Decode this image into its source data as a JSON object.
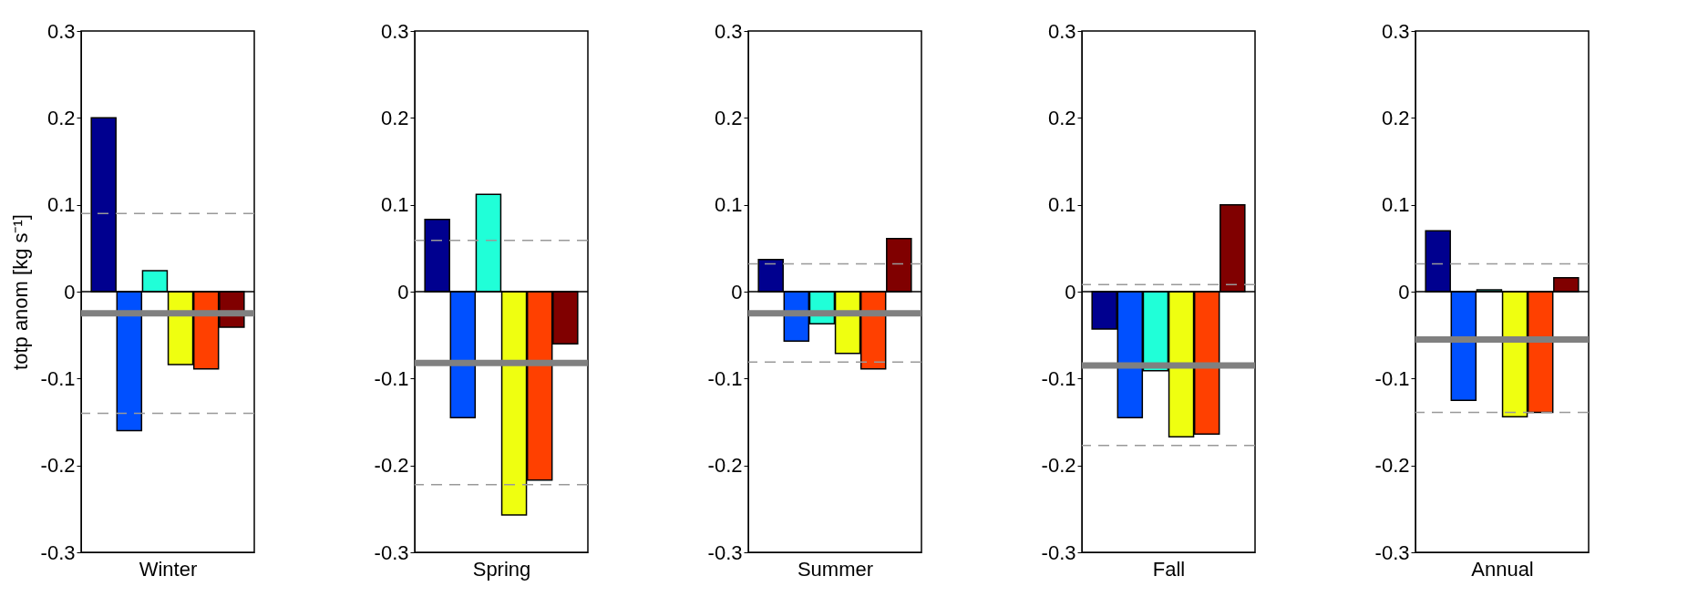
{
  "chart_data": [
    {
      "type": "bar",
      "xlabel": "Winter",
      "ylabel": "totp anom [kg s⁻¹]",
      "categories": [
        null,
        null,
        null,
        null,
        null,
        null
      ],
      "values": [
        0.2,
        -0.16,
        0.024,
        -0.084,
        -0.089,
        -0.041
      ],
      "colors": [
        "#00008f",
        "#0050ff",
        "#20ffd8",
        "#efff10",
        "#ff4000",
        "#800000"
      ],
      "ylim": [
        -0.3,
        0.3
      ],
      "yticks": [
        -0.3,
        -0.2,
        -0.1,
        0,
        0.1,
        0.2,
        0.3
      ],
      "ref_lines": [
        {
          "axis": "y",
          "value": -0.025,
          "color": "#808080",
          "line_style": "solid"
        },
        {
          "axis": "y",
          "value": 0.09,
          "color": "#999999",
          "line_style": "dashed"
        },
        {
          "axis": "y",
          "value": -0.14,
          "color": "#999999",
          "line_style": "dashed"
        }
      ]
    },
    {
      "type": "bar",
      "xlabel": "Spring",
      "categories": [
        null,
        null,
        null,
        null,
        null,
        null
      ],
      "values": [
        0.083,
        -0.145,
        0.112,
        -0.257,
        -0.217,
        -0.06
      ],
      "colors": [
        "#00008f",
        "#0050ff",
        "#20ffd8",
        "#efff10",
        "#ff4000",
        "#800000"
      ],
      "ylim": [
        -0.3,
        0.3
      ],
      "yticks": [
        -0.3,
        -0.2,
        -0.1,
        0,
        0.1,
        0.2,
        0.3
      ],
      "ref_lines": [
        {
          "axis": "y",
          "value": -0.082,
          "color": "#808080",
          "line_style": "solid"
        },
        {
          "axis": "y",
          "value": 0.059,
          "color": "#999999",
          "line_style": "dashed"
        },
        {
          "axis": "y",
          "value": -0.222,
          "color": "#999999",
          "line_style": "dashed"
        }
      ]
    },
    {
      "type": "bar",
      "xlabel": "Summer",
      "categories": [
        null,
        null,
        null,
        null,
        null,
        null
      ],
      "values": [
        0.037,
        -0.057,
        -0.037,
        -0.071,
        -0.089,
        0.061
      ],
      "colors": [
        "#00008f",
        "#0050ff",
        "#20ffd8",
        "#efff10",
        "#ff4000",
        "#800000"
      ],
      "ylim": [
        -0.3,
        0.3
      ],
      "yticks": [
        -0.3,
        -0.2,
        -0.1,
        0,
        0.1,
        0.2,
        0.3
      ],
      "ref_lines": [
        {
          "axis": "y",
          "value": -0.025,
          "color": "#808080",
          "line_style": "solid"
        },
        {
          "axis": "y",
          "value": 0.032,
          "color": "#999999",
          "line_style": "dashed"
        },
        {
          "axis": "y",
          "value": -0.081,
          "color": "#999999",
          "line_style": "dashed"
        }
      ]
    },
    {
      "type": "bar",
      "xlabel": "Fall",
      "categories": [
        null,
        null,
        null,
        null,
        null,
        null
      ],
      "values": [
        -0.043,
        -0.145,
        -0.091,
        -0.167,
        -0.164,
        0.1
      ],
      "colors": [
        "#00008f",
        "#0050ff",
        "#20ffd8",
        "#efff10",
        "#ff4000",
        "#800000"
      ],
      "ylim": [
        -0.3,
        0.3
      ],
      "yticks": [
        -0.3,
        -0.2,
        -0.1,
        0,
        0.1,
        0.2,
        0.3
      ],
      "ref_lines": [
        {
          "axis": "y",
          "value": -0.085,
          "color": "#808080",
          "line_style": "solid"
        },
        {
          "axis": "y",
          "value": 0.008,
          "color": "#999999",
          "line_style": "dashed"
        },
        {
          "axis": "y",
          "value": -0.177,
          "color": "#999999",
          "line_style": "dashed"
        }
      ]
    },
    {
      "type": "bar",
      "xlabel": "Annual",
      "categories": [
        null,
        null,
        null,
        null,
        null,
        null
      ],
      "values": [
        0.07,
        -0.125,
        0.002,
        -0.144,
        -0.139,
        0.016
      ],
      "colors": [
        "#00008f",
        "#0050ff",
        "#20ffd8",
        "#efff10",
        "#ff4000",
        "#800000"
      ],
      "ylim": [
        -0.3,
        0.3
      ],
      "yticks": [
        -0.3,
        -0.2,
        -0.1,
        0,
        0.1,
        0.2,
        0.3
      ],
      "ref_lines": [
        {
          "axis": "y",
          "value": -0.055,
          "color": "#808080",
          "line_style": "solid"
        },
        {
          "axis": "y",
          "value": 0.032,
          "color": "#999999",
          "line_style": "dashed"
        },
        {
          "axis": "y",
          "value": -0.139,
          "color": "#999999",
          "line_style": "dashed"
        }
      ]
    }
  ]
}
